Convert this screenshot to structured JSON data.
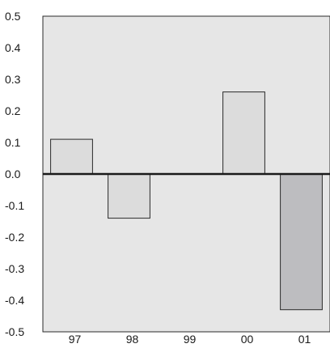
{
  "colors": {
    "plot_background": "#e6e6e6",
    "bar_fill_light": "#dcdcdc",
    "bar_fill_dark": "#bdbdc0",
    "bar_stroke": "#2a2a2a",
    "zero_line": "#1a1a1a"
  },
  "chart_data": {
    "type": "bar",
    "title": "",
    "xlabel": "",
    "ylabel": "",
    "categories": [
      "97",
      "98",
      "99",
      "00",
      "01"
    ],
    "values": [
      0.11,
      -0.14,
      0.0,
      0.26,
      -0.43
    ],
    "highlight": [
      false,
      false,
      false,
      false,
      true
    ],
    "ylim": [
      -0.5,
      0.5
    ],
    "yticks": [
      "0.5",
      "0.4",
      "0.3",
      "0.2",
      "0.1",
      "0.0",
      "-0.1",
      "-0.2",
      "-0.3",
      "-0.4",
      "-0.5"
    ],
    "ytick_values": [
      0.5,
      0.4,
      0.3,
      0.2,
      0.1,
      0.0,
      -0.1,
      -0.2,
      -0.3,
      -0.4,
      -0.5
    ],
    "grid": false,
    "legend": "none"
  }
}
